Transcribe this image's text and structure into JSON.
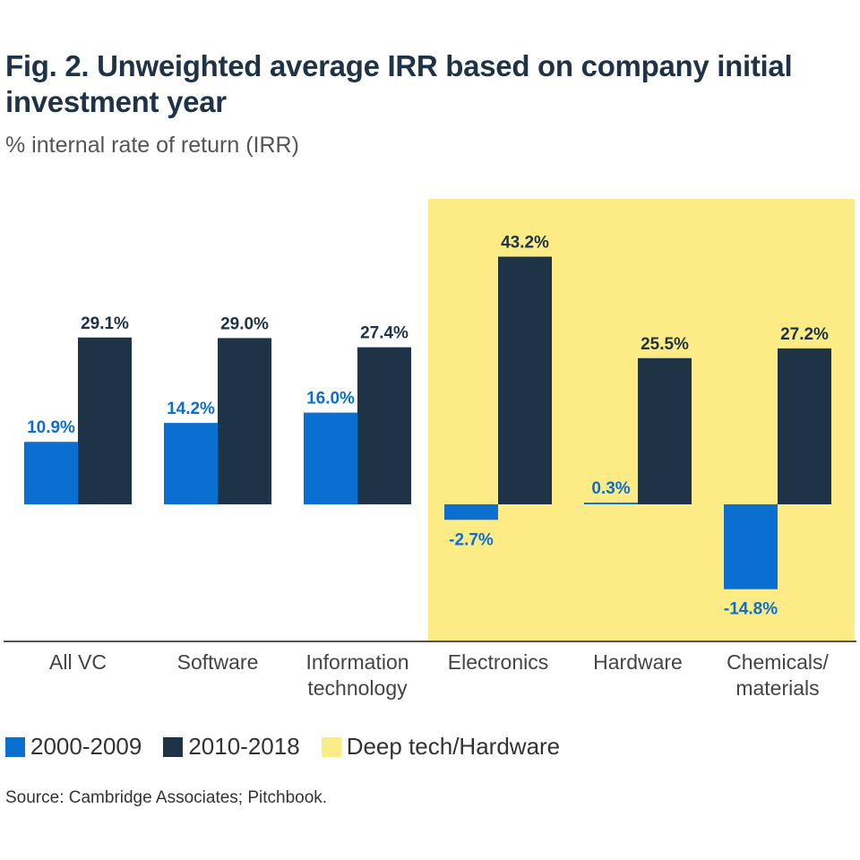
{
  "title": "Fig. 2. Unweighted average IRR based on company initial investment year",
  "subtitle": "% internal rate of return (IRR)",
  "source": "Source: Cambridge Associates; Pitchbook.",
  "colors": {
    "series_2000": "#0a6fd0",
    "series_2010": "#1f3346",
    "highlight": "#fdec85",
    "axis": "#555555",
    "label_2000": "#0a6fd0",
    "label_2010": "#1f3346",
    "category_text": "#444444"
  },
  "legend": [
    {
      "label": "2000-2009",
      "color": "#0a6fd0"
    },
    {
      "label": "2010-2018",
      "color": "#1f3346"
    },
    {
      "label": "Deep tech/Hardware",
      "color": "#fdec85"
    }
  ],
  "chart_data": {
    "type": "bar",
    "title": "Fig. 2. Unweighted average IRR based on company initial investment year",
    "ylabel": "% internal rate of return (IRR)",
    "categories": [
      [
        "All VC"
      ],
      [
        "Software"
      ],
      [
        "Information",
        "technology"
      ],
      [
        "Electronics"
      ],
      [
        "Hardware"
      ],
      [
        "Chemicals/",
        "materials"
      ]
    ],
    "series": [
      {
        "name": "2000-2009",
        "values": [
          10.9,
          14.2,
          16.0,
          -2.7,
          0.3,
          -14.8
        ],
        "labels": [
          "10.9%",
          "14.2%",
          "16.0%",
          "-2.7%",
          "0.3%",
          "-14.8%"
        ]
      },
      {
        "name": "2010-2018",
        "values": [
          29.1,
          29.0,
          27.4,
          43.2,
          25.5,
          27.2
        ],
        "labels": [
          "29.1%",
          "29.0%",
          "27.4%",
          "43.2%",
          "25.5%",
          "27.2%"
        ]
      }
    ],
    "highlight": {
      "label": "Deep tech/Hardware",
      "categories": [
        "Electronics",
        "Hardware",
        "Chemicals/materials"
      ]
    },
    "ylim": [
      -23.7,
      53.7
    ],
    "grid": false,
    "legend_position": "bottom-left"
  }
}
